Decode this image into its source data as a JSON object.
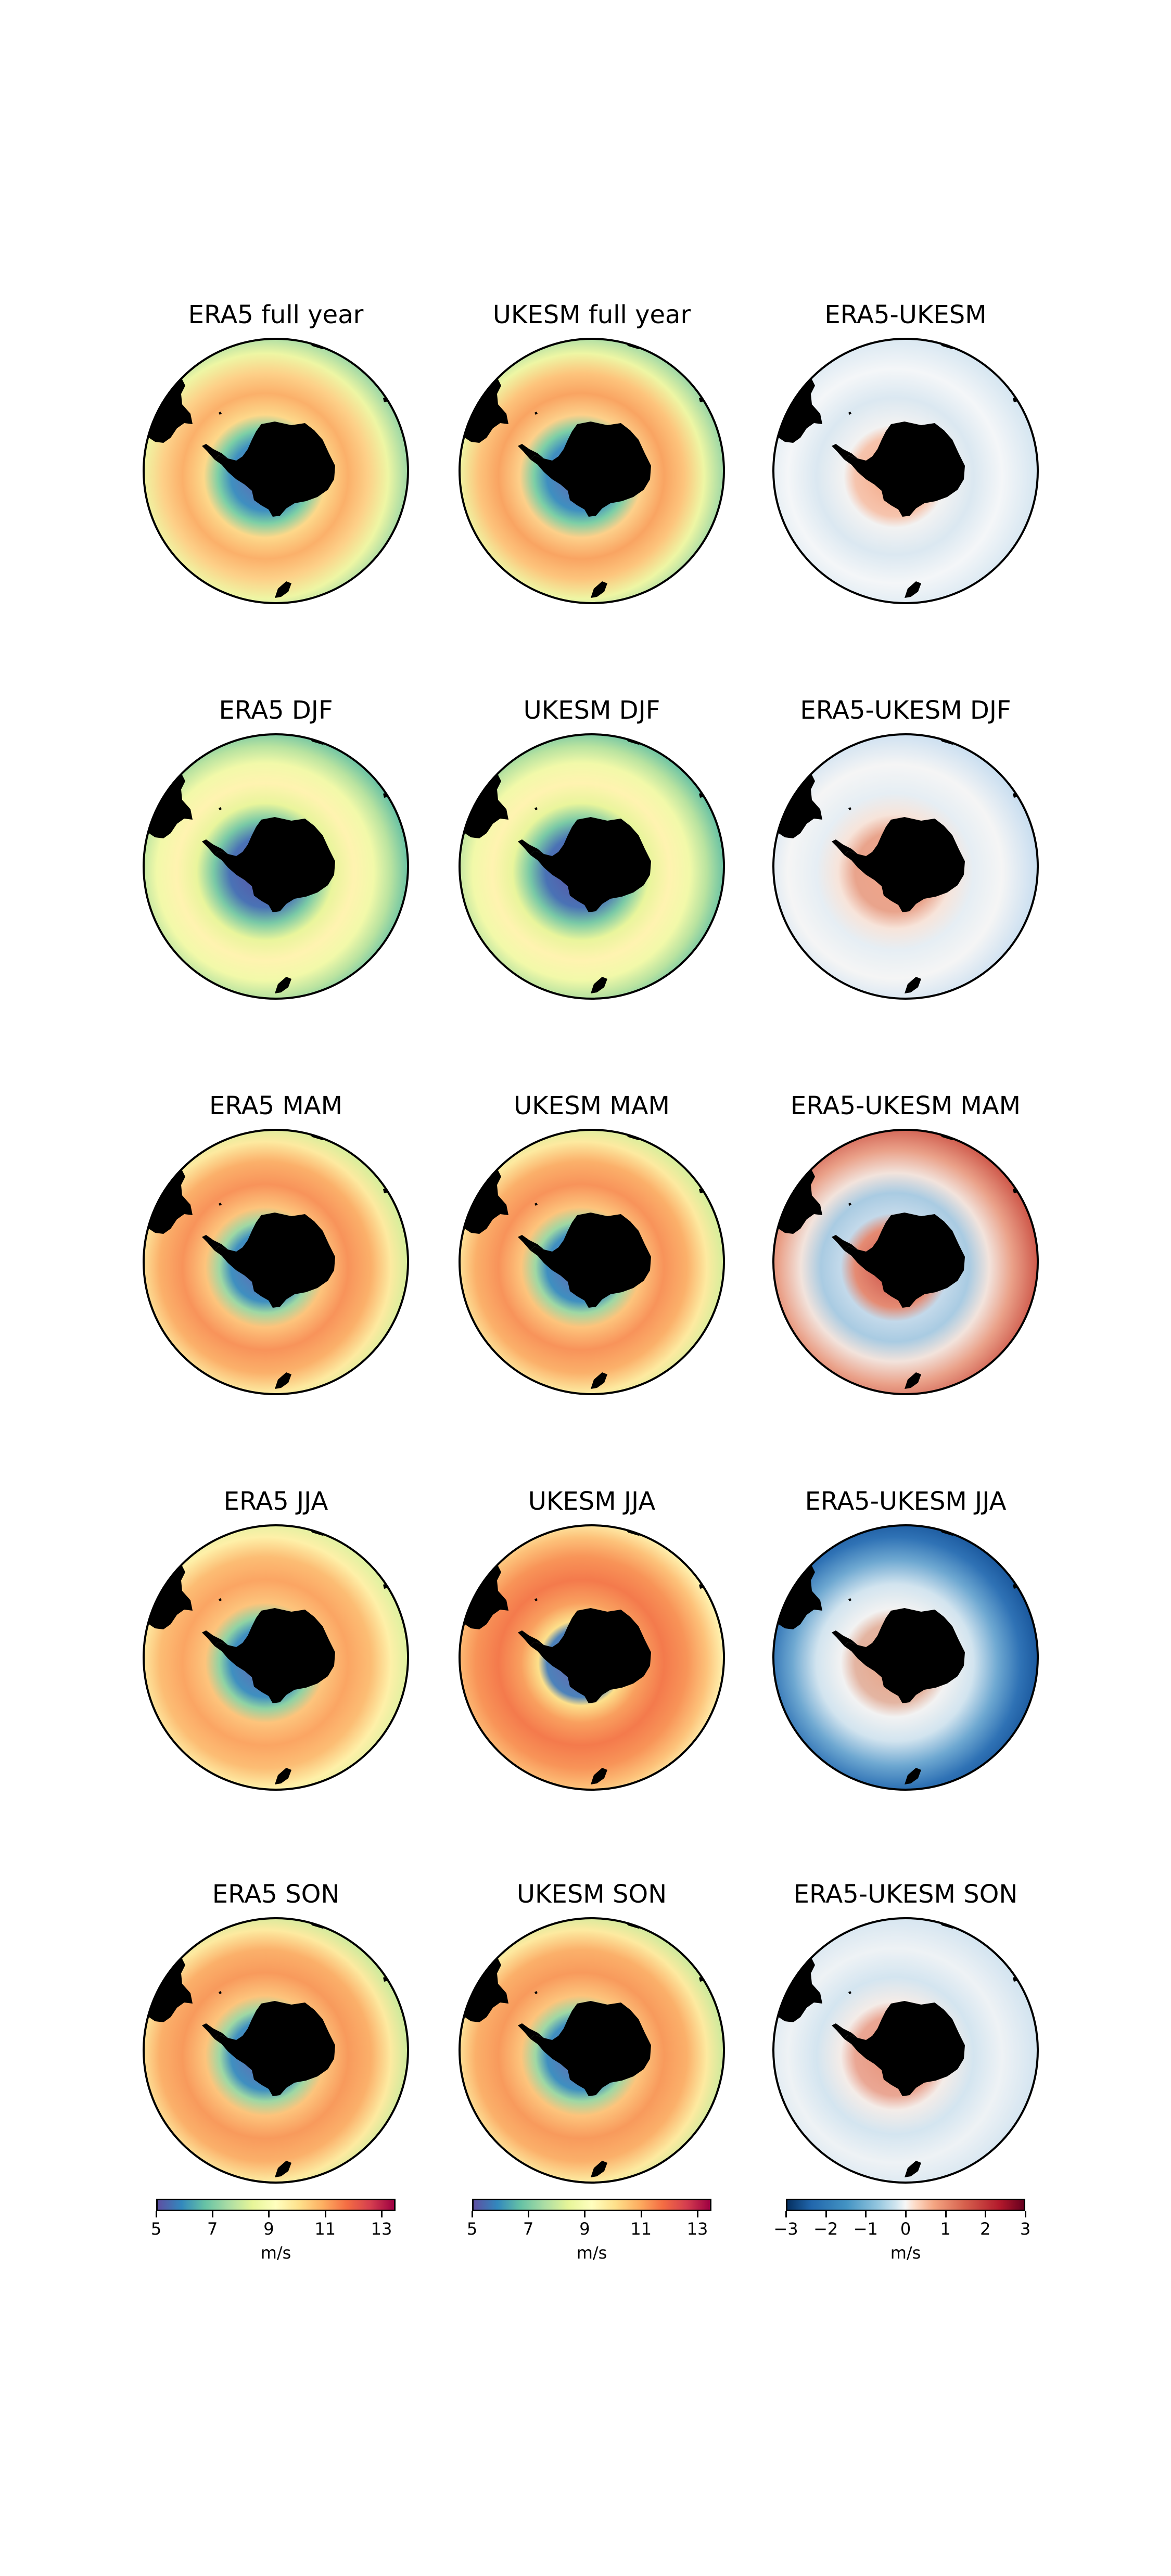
{
  "figure": {
    "rows": [
      {
        "season": "full year",
        "panels": [
          {
            "title": "ERA5 full year",
            "kind": "speed",
            "pattern": "full-year-era5"
          },
          {
            "title": "UKESM full year",
            "kind": "speed",
            "pattern": "full-year-ukesm"
          },
          {
            "title": "ERA5-UKESM",
            "kind": "diff",
            "pattern": "diff-full-year-weak"
          }
        ]
      },
      {
        "season": "DJF",
        "panels": [
          {
            "title": "ERA5 DJF",
            "kind": "speed",
            "pattern": "djf-moderate"
          },
          {
            "title": "UKESM DJF",
            "kind": "speed",
            "pattern": "djf-moderate"
          },
          {
            "title": "ERA5-UKESM DJF",
            "kind": "diff",
            "pattern": "diff-djf-light-blue-red-coast"
          }
        ]
      },
      {
        "season": "MAM",
        "panels": [
          {
            "title": "ERA5 MAM",
            "kind": "speed",
            "pattern": "mam-strong"
          },
          {
            "title": "UKESM MAM",
            "kind": "speed",
            "pattern": "mam-strong"
          },
          {
            "title": "ERA5-UKESM MAM",
            "kind": "diff",
            "pattern": "diff-mam-red-outer-blue-inner"
          }
        ]
      },
      {
        "season": "JJA",
        "panels": [
          {
            "title": "ERA5 JJA",
            "kind": "speed",
            "pattern": "jja-era5"
          },
          {
            "title": "UKESM JJA",
            "kind": "speed",
            "pattern": "jja-ukesm-strong"
          },
          {
            "title": "ERA5-UKESM JJA",
            "kind": "diff",
            "pattern": "diff-jja-strong-blue-outer"
          }
        ]
      },
      {
        "season": "SON",
        "panels": [
          {
            "title": "ERA5 SON",
            "kind": "speed",
            "pattern": "son-strong"
          },
          {
            "title": "UKESM SON",
            "kind": "speed",
            "pattern": "son-strong"
          },
          {
            "title": "ERA5-UKESM SON",
            "kind": "diff",
            "pattern": "diff-son-weak"
          }
        ]
      }
    ],
    "colorbars": [
      {
        "colormap": "Spectral_r",
        "ticks": [
          "5",
          "7",
          "9",
          "11",
          "13"
        ],
        "range": [
          5,
          13.5
        ],
        "unit": "m/s"
      },
      {
        "colormap": "Spectral_r",
        "ticks": [
          "5",
          "7",
          "9",
          "11",
          "13"
        ],
        "range": [
          5,
          13.5
        ],
        "unit": "m/s"
      },
      {
        "colormap": "RdBu_r",
        "ticks": [
          "−3",
          "−2",
          "−1",
          "0",
          "1",
          "2",
          "3"
        ],
        "range": [
          -3,
          3
        ],
        "unit": "m/s"
      }
    ],
    "land_color": "#000000",
    "map_projection": "south polar stereographic"
  }
}
